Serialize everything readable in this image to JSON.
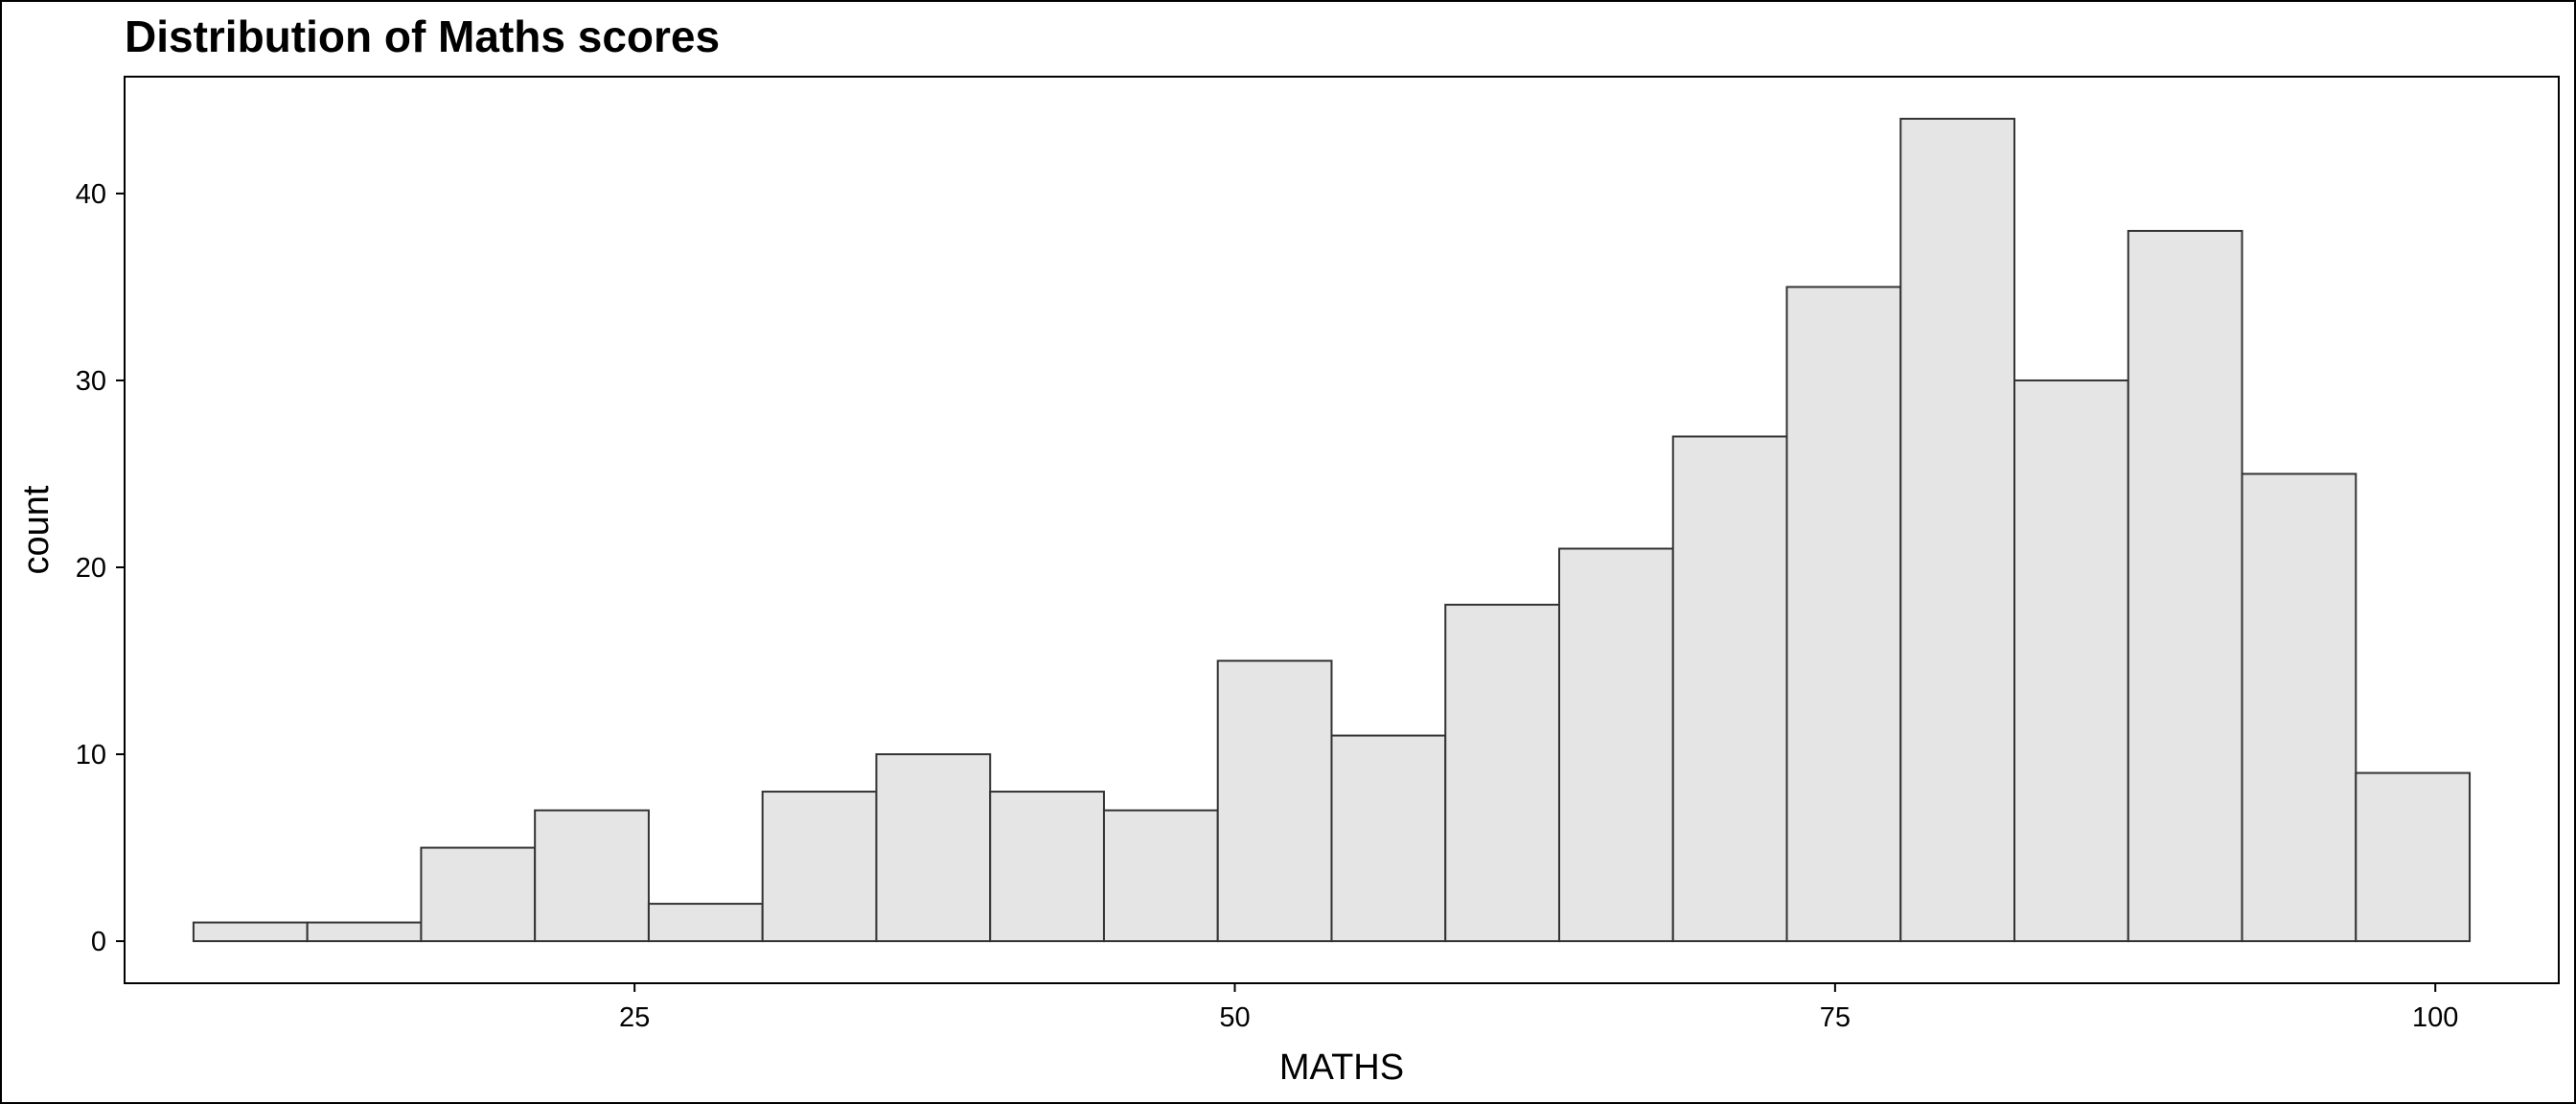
{
  "chart_data": {
    "type": "bar",
    "title": "Distribution of Maths scores",
    "xlabel": "MATHS",
    "ylabel": "count",
    "bin_width": 4.74,
    "bins": [
      {
        "x": 9.0,
        "count": 1
      },
      {
        "x": 13.74,
        "count": 1
      },
      {
        "x": 18.48,
        "count": 5
      },
      {
        "x": 23.22,
        "count": 7
      },
      {
        "x": 27.96,
        "count": 2
      },
      {
        "x": 32.7,
        "count": 8
      },
      {
        "x": 37.44,
        "count": 10
      },
      {
        "x": 42.18,
        "count": 8
      },
      {
        "x": 46.92,
        "count": 7
      },
      {
        "x": 51.66,
        "count": 15
      },
      {
        "x": 56.4,
        "count": 11
      },
      {
        "x": 61.14,
        "count": 18
      },
      {
        "x": 65.88,
        "count": 21
      },
      {
        "x": 70.62,
        "count": 27
      },
      {
        "x": 75.36,
        "count": 35
      },
      {
        "x": 80.1,
        "count": 44
      },
      {
        "x": 84.84,
        "count": 30
      },
      {
        "x": 89.58,
        "count": 38
      },
      {
        "x": 94.32,
        "count": 25
      },
      {
        "x": 99.06,
        "count": 9
      }
    ],
    "xlim": [
      3.8,
      105.1
    ],
    "ylim": [
      -2.2,
      46.2
    ],
    "x_ticks": [
      25,
      50,
      75,
      100
    ],
    "y_ticks": [
      0,
      10,
      20,
      30,
      40
    ],
    "grid": false,
    "bar_fill": "#e5e5e5",
    "bar_stroke": "#333333"
  }
}
